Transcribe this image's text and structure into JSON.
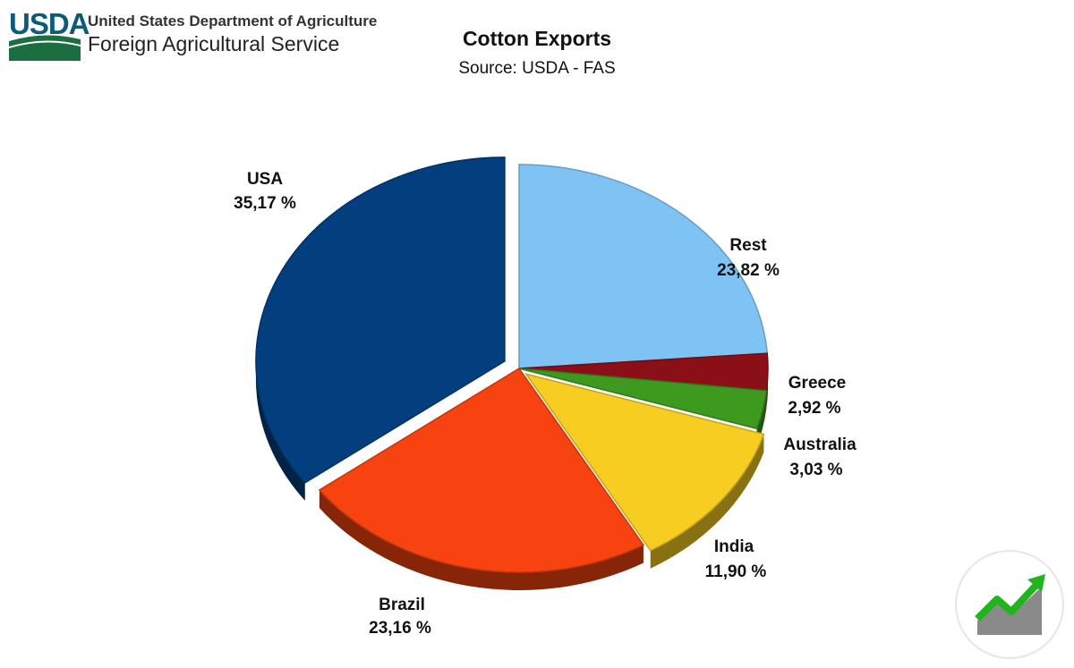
{
  "header": {
    "logo_text": "USDA",
    "org_name": "United States Department of Agriculture",
    "org_subname": "Foreign Agricultural Service"
  },
  "badge_icon": "trending-up-chart-icon",
  "chart_data": {
    "type": "pie",
    "title": "Cotton Exports",
    "subtitle": "Source: USDA - FAS",
    "categories": [
      "Rest",
      "Greece",
      "Australia",
      "India",
      "Brazil",
      "USA"
    ],
    "values": [
      23.82,
      2.92,
      3.03,
      11.9,
      23.16,
      35.17
    ],
    "data_labels": [
      "23,82 %",
      "2,92 %",
      "3,03 %",
      "11,90 %",
      "23,16 %",
      "35,17 %"
    ],
    "colors": [
      "#7fc3f5",
      "#8b0f16",
      "#3d9a1e",
      "#f7cd22",
      "#f64310",
      "#033f7e"
    ],
    "exploded": [
      "USA",
      "India"
    ],
    "style": "3d-tilted",
    "legend": "none"
  }
}
